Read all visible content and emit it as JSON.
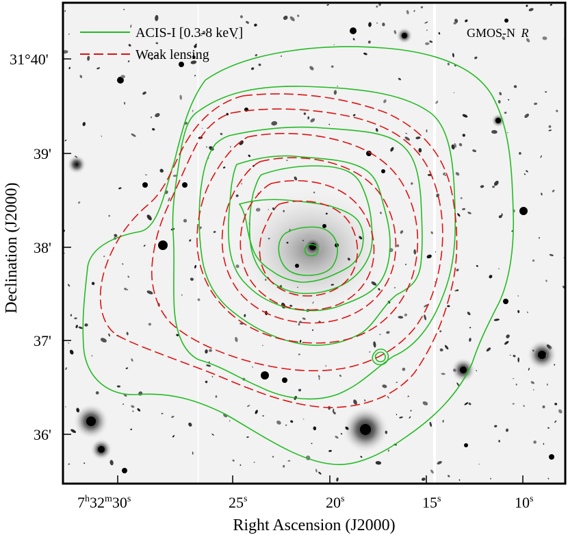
{
  "image": {
    "overlay_label": "GMOS-N",
    "overlay_label_italic": "R",
    "legend": [
      {
        "label": "ACIS-I [0.3-8 keV]",
        "color": "#22bb22",
        "style": "solid"
      },
      {
        "label": "Weak lensing",
        "color": "#dd1111",
        "style": "dashed"
      }
    ],
    "xlabel": "Right Ascension (J2000)",
    "ylabel": "Declination (J2000)",
    "x_ticks": [
      {
        "main": "7",
        "s1": "h",
        "mid": "32",
        "s2": "m",
        "tail": "30",
        "s3": "s"
      },
      {
        "main": "25",
        "s1": "s"
      },
      {
        "main": "20",
        "s1": "s"
      },
      {
        "main": "15",
        "s1": "s"
      },
      {
        "main": "10",
        "s1": "s"
      }
    ],
    "y_ticks": [
      "31°40'",
      "39'",
      "38'",
      "37'",
      "36'"
    ],
    "colors": {
      "frame": "#000000",
      "sky": "#f2f2f2",
      "xray_contour": "#22bb22",
      "lensing_contour": "#dd1111"
    }
  }
}
